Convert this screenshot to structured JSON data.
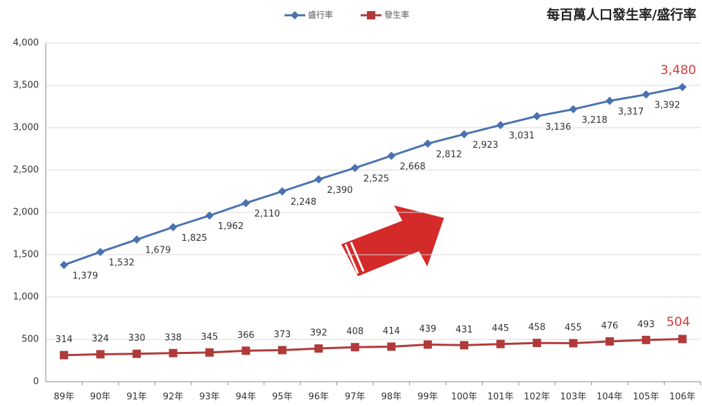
{
  "chart_data": {
    "type": "line",
    "title": "每百萬人口發生率/盛行率",
    "categories": [
      "89年",
      "90年",
      "91年",
      "92年",
      "93年",
      "94年",
      "95年",
      "96年",
      "97年",
      "98年",
      "99年",
      "100年",
      "101年",
      "102年",
      "103年",
      "104年",
      "105年",
      "106年"
    ],
    "series": [
      {
        "name": "盛行率",
        "color": "#4a72b0",
        "marker": "diamond",
        "values": [
          1379,
          1532,
          1679,
          1825,
          1962,
          2110,
          2248,
          2390,
          2525,
          2668,
          2812,
          2923,
          3031,
          3136,
          3218,
          3317,
          3392,
          3480
        ],
        "value_labels": [
          "1,379",
          "1,532",
          "1,679",
          "1,825",
          "1,962",
          "2,110",
          "2,248",
          "2,390",
          "2,525",
          "2,668",
          "2,812",
          "2,923",
          "3,031",
          "3,136",
          "3,218",
          "3,317",
          "3,392",
          "3,480"
        ]
      },
      {
        "name": "發生率",
        "color": "#b03a3a",
        "marker": "square",
        "values": [
          314,
          324,
          330,
          338,
          345,
          366,
          373,
          392,
          408,
          414,
          439,
          431,
          445,
          458,
          455,
          476,
          493,
          504
        ]
      }
    ],
    "ylim": [
      0,
      4000
    ],
    "yticks": [
      0,
      500,
      {
        "value": 1000,
        "label": "1,000"
      },
      {
        "value": 1500,
        "label": "1,500"
      },
      {
        "value": 2000,
        "label": "2,000"
      },
      {
        "value": 2500,
        "label": "2,500"
      },
      {
        "value": 3000,
        "label": "3,000"
      },
      {
        "value": 3500,
        "label": "3,500"
      },
      {
        "value": 4000,
        "label": "4,000"
      }
    ],
    "grid": true
  }
}
